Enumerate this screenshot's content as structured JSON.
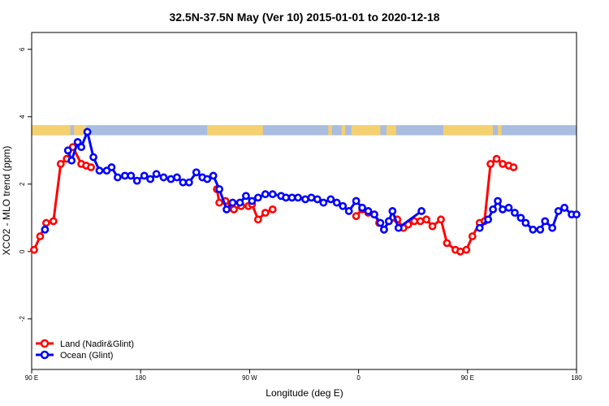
{
  "chart_data": {
    "type": "line",
    "title": "32.5N-37.5N May (Ver 10)   2015-01-01 to 2020-12-18",
    "xlabel": "Longitude (deg E)",
    "ylabel": "XCO2 - MLO trend (ppm)",
    "xlim": [
      90,
      540
    ],
    "ylim": [
      -3.5,
      6.5
    ],
    "x_ticks": [
      {
        "value": 90,
        "label": "90 E"
      },
      {
        "value": 180,
        "label": "180"
      },
      {
        "value": 270,
        "label": "90 W"
      },
      {
        "value": 360,
        "label": "0"
      },
      {
        "value": 450,
        "label": "90 E"
      },
      {
        "value": 540,
        "label": "180"
      }
    ],
    "y_ticks": [
      {
        "value": -2,
        "label": "-2"
      },
      {
        "value": 0,
        "label": "0"
      },
      {
        "value": 2,
        "label": "2"
      },
      {
        "value": 4,
        "label": "4"
      },
      {
        "value": 6,
        "label": "6"
      }
    ],
    "grid": false,
    "legend_position": "bottom-left",
    "land_ocean_strip": {
      "y_range": [
        3.45,
        3.75
      ],
      "land_color": "#f5d06f",
      "ocean_color": "#a9bde0",
      "land_segments": [
        [
          90,
          122
        ],
        [
          125,
          135
        ],
        [
          235,
          281
        ],
        [
          335,
          338
        ],
        [
          346,
          349
        ],
        [
          354,
          360
        ],
        [
          360,
          378
        ],
        [
          383,
          391
        ],
        [
          430,
          452
        ],
        [
          452,
          471
        ],
        [
          475,
          478
        ]
      ]
    },
    "series": [
      {
        "name": "Land (Nadir&Glint)",
        "color": "#ff0000",
        "x": [
          92,
          97,
          102,
          108,
          114,
          119,
          124,
          131,
          135,
          139,
          243,
          245,
          250,
          257,
          263,
          269,
          272,
          277,
          283,
          289,
          358,
          363,
          368,
          373,
          377,
          381,
          385,
          392,
          397,
          401,
          406,
          411,
          416,
          421,
          428,
          433,
          440,
          444,
          449,
          454,
          460,
          464,
          469,
          474,
          479,
          484,
          488
        ],
        "y": [
          0.05,
          0.45,
          0.85,
          0.9,
          2.6,
          2.75,
          3.1,
          2.6,
          2.55,
          2.5,
          1.85,
          1.45,
          1.5,
          1.25,
          1.35,
          1.35,
          1.4,
          0.95,
          1.15,
          1.25,
          1.05,
          1.25,
          1.15,
          1.1,
          0.85,
          0.65,
          0.9,
          0.95,
          0.7,
          0.8,
          0.9,
          0.9,
          0.95,
          0.75,
          0.95,
          0.25,
          0.05,
          0.0,
          0.05,
          0.45,
          0.85,
          0.9,
          2.6,
          2.75,
          2.6,
          2.55,
          2.5
        ],
        "segments": [
          10,
          10,
          27
        ]
      },
      {
        "name": "Ocean (Glint)",
        "color": "#0000ff",
        "x": [
          101,
          120,
          123,
          128,
          131,
          136,
          141,
          146,
          152,
          156,
          161,
          167,
          172,
          177,
          183,
          188,
          193,
          199,
          205,
          210,
          215,
          220,
          226,
          231,
          235,
          240,
          245,
          251,
          256,
          262,
          267,
          272,
          277,
          283,
          289,
          296,
          300,
          305,
          310,
          316,
          321,
          326,
          331,
          337,
          342,
          347,
          352,
          358,
          363,
          368,
          373,
          378,
          381,
          385,
          388,
          393,
          412,
          460,
          467,
          471,
          475,
          479,
          484,
          489,
          494,
          498,
          504,
          510,
          514,
          520,
          525,
          530,
          536,
          540
        ],
        "y": [
          0.65,
          3.0,
          2.7,
          3.25,
          3.1,
          3.55,
          2.8,
          2.4,
          2.4,
          2.5,
          2.2,
          2.25,
          2.25,
          2.1,
          2.25,
          2.15,
          2.3,
          2.2,
          2.15,
          2.2,
          2.05,
          2.05,
          2.35,
          2.2,
          2.15,
          2.25,
          1.85,
          1.25,
          1.45,
          1.45,
          1.65,
          1.5,
          1.6,
          1.7,
          1.7,
          1.65,
          1.6,
          1.6,
          1.6,
          1.55,
          1.6,
          1.55,
          1.45,
          1.55,
          1.45,
          1.35,
          1.2,
          1.5,
          1.3,
          1.2,
          1.1,
          0.85,
          0.65,
          0.9,
          1.2,
          0.7,
          1.2,
          0.7,
          0.95,
          1.25,
          1.5,
          1.25,
          1.3,
          1.15,
          1.0,
          0.85,
          0.65,
          0.65,
          0.9,
          0.7,
          1.2,
          1.3,
          1.1,
          1.1
        ],
        "segments": [
          1,
          56,
          17
        ]
      }
    ]
  }
}
